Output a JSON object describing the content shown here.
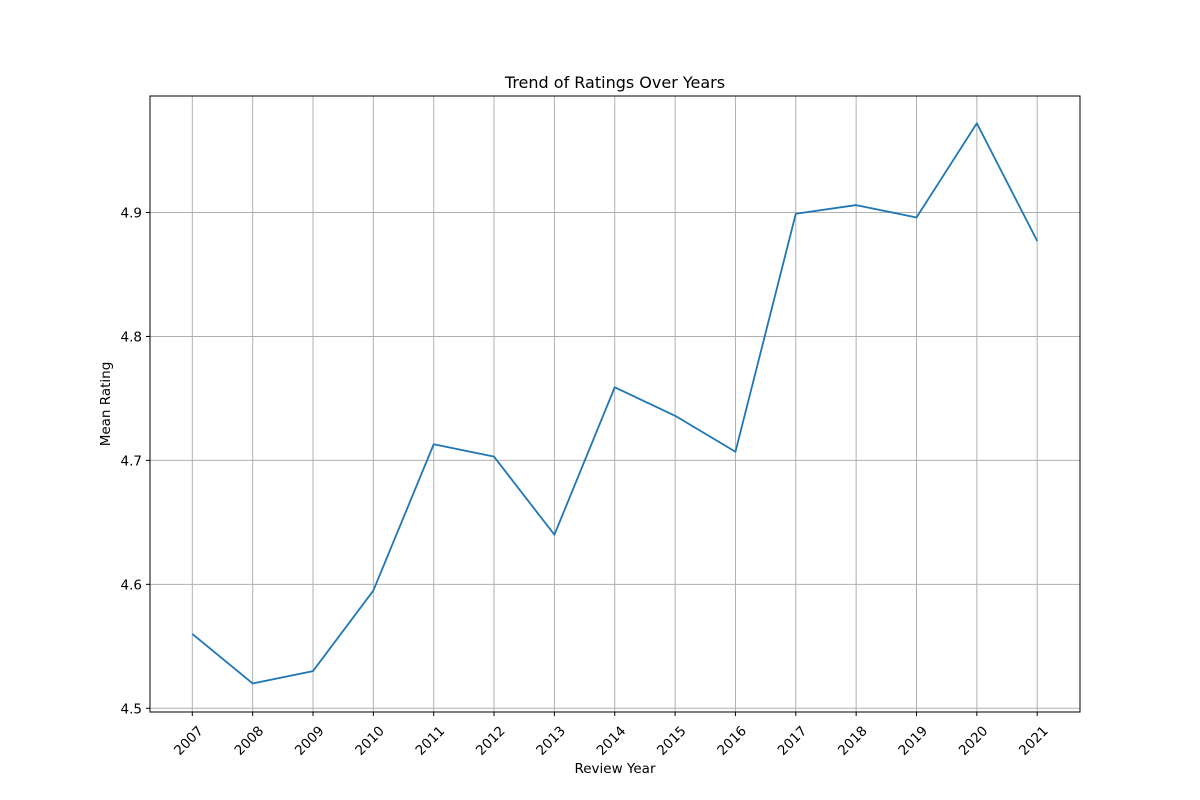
{
  "chart_data": {
    "type": "line",
    "title": "Trend of Ratings Over Years",
    "xlabel": "Review Year",
    "ylabel": "Mean Rating",
    "x": [
      "2007",
      "2008",
      "2009",
      "2010",
      "2011",
      "2012",
      "2013",
      "2014",
      "2015",
      "2016",
      "2017",
      "2018",
      "2019",
      "2020",
      "2021"
    ],
    "series": [
      {
        "values": [
          4.56,
          4.52,
          4.53,
          4.595,
          4.713,
          4.703,
          4.64,
          4.759,
          4.736,
          4.707,
          4.899,
          4.906,
          4.896,
          4.972,
          4.877
        ],
        "color": "#1f77b4"
      }
    ],
    "yticks": [
      "4.5",
      "4.6",
      "4.7",
      "4.8",
      "4.9"
    ],
    "ylim": [
      4.497,
      4.994
    ],
    "grid": true,
    "legend": "none"
  }
}
